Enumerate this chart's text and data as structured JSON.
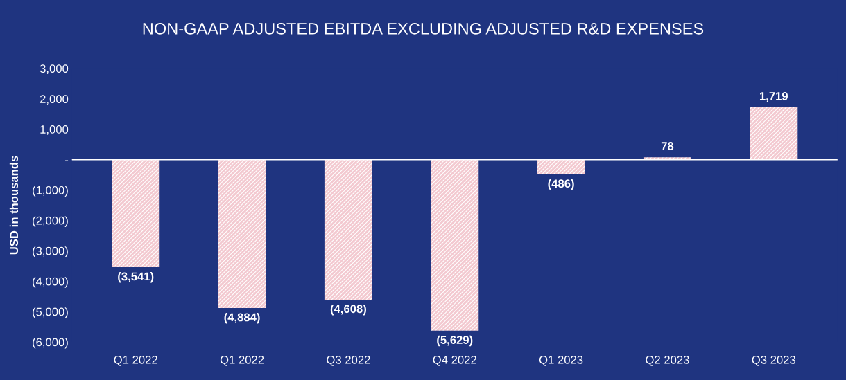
{
  "chart_data": {
    "type": "bar",
    "title": "NON-GAAP ADJUSTED EBITDA EXCLUDING ADJUSTED R&D EXPENSES",
    "ylabel": "USD in thousands",
    "categories": [
      "Q1 2022",
      "Q1 2022",
      "Q3 2022",
      "Q4 2022",
      "Q1 2023",
      "Q2 2023",
      "Q3 2023"
    ],
    "values": [
      -3541,
      -4884,
      -4608,
      -5629,
      -486,
      78,
      1719
    ],
    "value_labels": [
      "(3,541)",
      "(4,884)",
      "(4,608)",
      "(5,629)",
      "(486)",
      "78",
      "1,719"
    ],
    "color": "#f3c9d0",
    "ylim": [
      -6000,
      3000
    ],
    "yticks": [
      {
        "value": 3000,
        "label": "3,000"
      },
      {
        "value": 2000,
        "label": "2,000"
      },
      {
        "value": 1000,
        "label": "1,000"
      },
      {
        "value": 0,
        "label": "-"
      },
      {
        "value": -1000,
        "label": "(1,000)"
      },
      {
        "value": -2000,
        "label": "(2,000)"
      },
      {
        "value": -3000,
        "label": "(3,000)"
      },
      {
        "value": -4000,
        "label": "(4,000)"
      },
      {
        "value": -5000,
        "label": "(5,000)"
      },
      {
        "value": -6000,
        "label": "(6,000)"
      }
    ],
    "ref_lines": [
      {
        "axis": "y",
        "value": 0,
        "color": "#ffffff"
      }
    ],
    "grid": false,
    "legend": false
  }
}
